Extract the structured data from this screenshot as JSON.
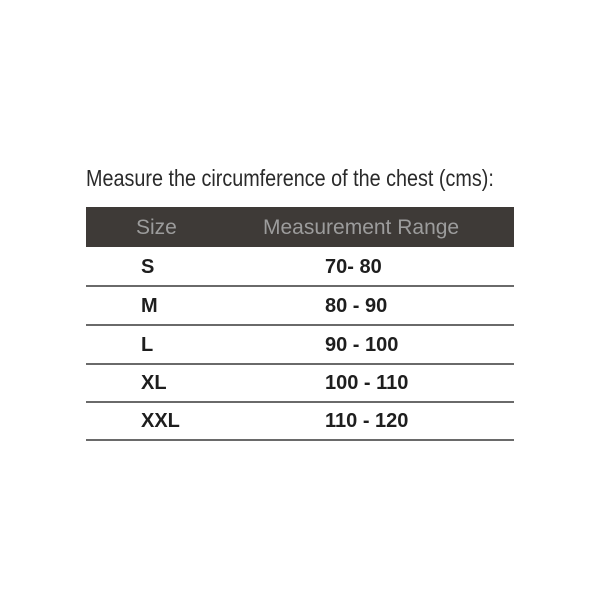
{
  "title": "Measure the circumference of the chest (cms):",
  "table": {
    "headers": {
      "size": "Size",
      "range": "Measurement Range"
    },
    "rows": [
      {
        "size": "S",
        "range": "70- 80"
      },
      {
        "size": "M",
        "range": "80 - 90"
      },
      {
        "size": "L",
        "range": "90 - 100"
      },
      {
        "size": "XL",
        "range": "100 - 110"
      },
      {
        "size": "XXL",
        "range": "110 - 120"
      }
    ]
  },
  "colors": {
    "header_bg": "#3e3a37",
    "header_text": "#9c9c9c",
    "text": "#1e1e1e"
  }
}
